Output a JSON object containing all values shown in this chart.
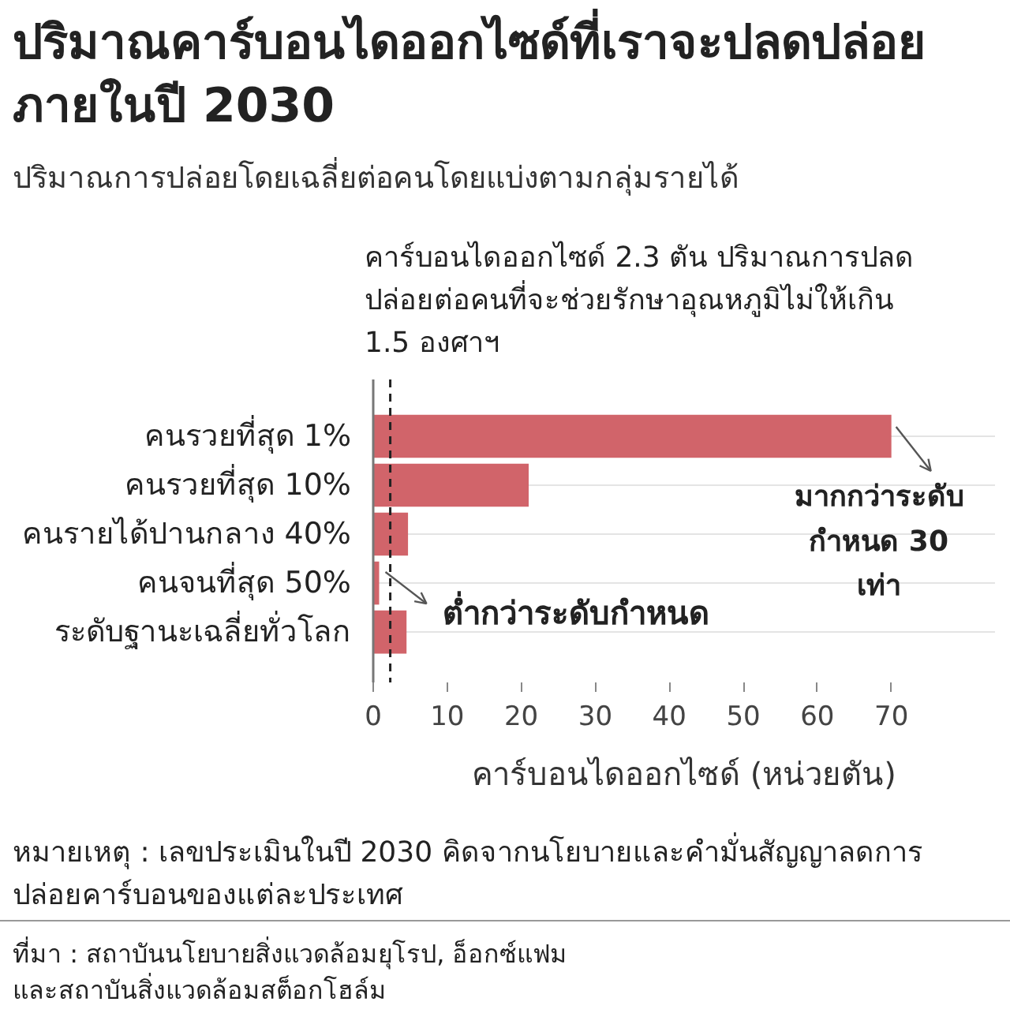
{
  "chart_data": {
    "type": "bar",
    "orientation": "horizontal",
    "title": "ปริมาณคาร์บอนไดออกไซด์ที่เราจะปลดปล่อยภายในปี 2030",
    "subtitle": "ปริมาณการปล่อยโดยเฉลี่ยต่อคนโดยแบ่งตามกลุ่มรายได้",
    "xlabel": "คาร์บอนไดออกไซด์ (หน่วยตัน)",
    "categories": [
      "คนรวยที่สุด 1%",
      "คนรวยที่สุด 10%",
      "คนรายได้ปานกลาง 40%",
      "คนจนที่สุด 50%",
      "ระดับฐานะเฉลี่ยทั่วโลก"
    ],
    "values": [
      70,
      21,
      4.7,
      0.8,
      4.5
    ],
    "color": "#d1646a",
    "xlim": [
      0,
      84
    ],
    "xticks": [
      0,
      10,
      20,
      30,
      40,
      50,
      60,
      70
    ],
    "grid": "y",
    "ref_lines": [
      {
        "axis": "x",
        "value": 2.3,
        "label": "คาร์บอนไดออกไซด์ 2.3 ตัน ปริมาณการปลดปล่อยต่อคนที่จะช่วยรักษาอุณหภูมิไม่ให้เกิน 1.5 องศาฯ",
        "color": "#222222",
        "line_style": "dashed"
      }
    ],
    "annotations": [
      {
        "text": "มากกว่าระดับกำหนด 30 เท่า",
        "x": 70,
        "y": "คนรวยที่สุด 1%"
      },
      {
        "text": "ต่ำกว่าระดับกำหนด",
        "x": 0.8,
        "y": "คนจนที่สุด 50%"
      },
      "หมายเหตุ : เลขประเมินในปี 2030 คิดจากนโยบายและคำมั่นสัญญาลดการปล่อยคาร์บอนของแต่ละประเทศ",
      "ที่มา : สถาบันนโยบายสิ่งแวดล้อมยุโรป, อ็อกซ์แฟม และสถาบันสิ่งแวดล้อมสต็อกโฮล์ม"
    ]
  }
}
